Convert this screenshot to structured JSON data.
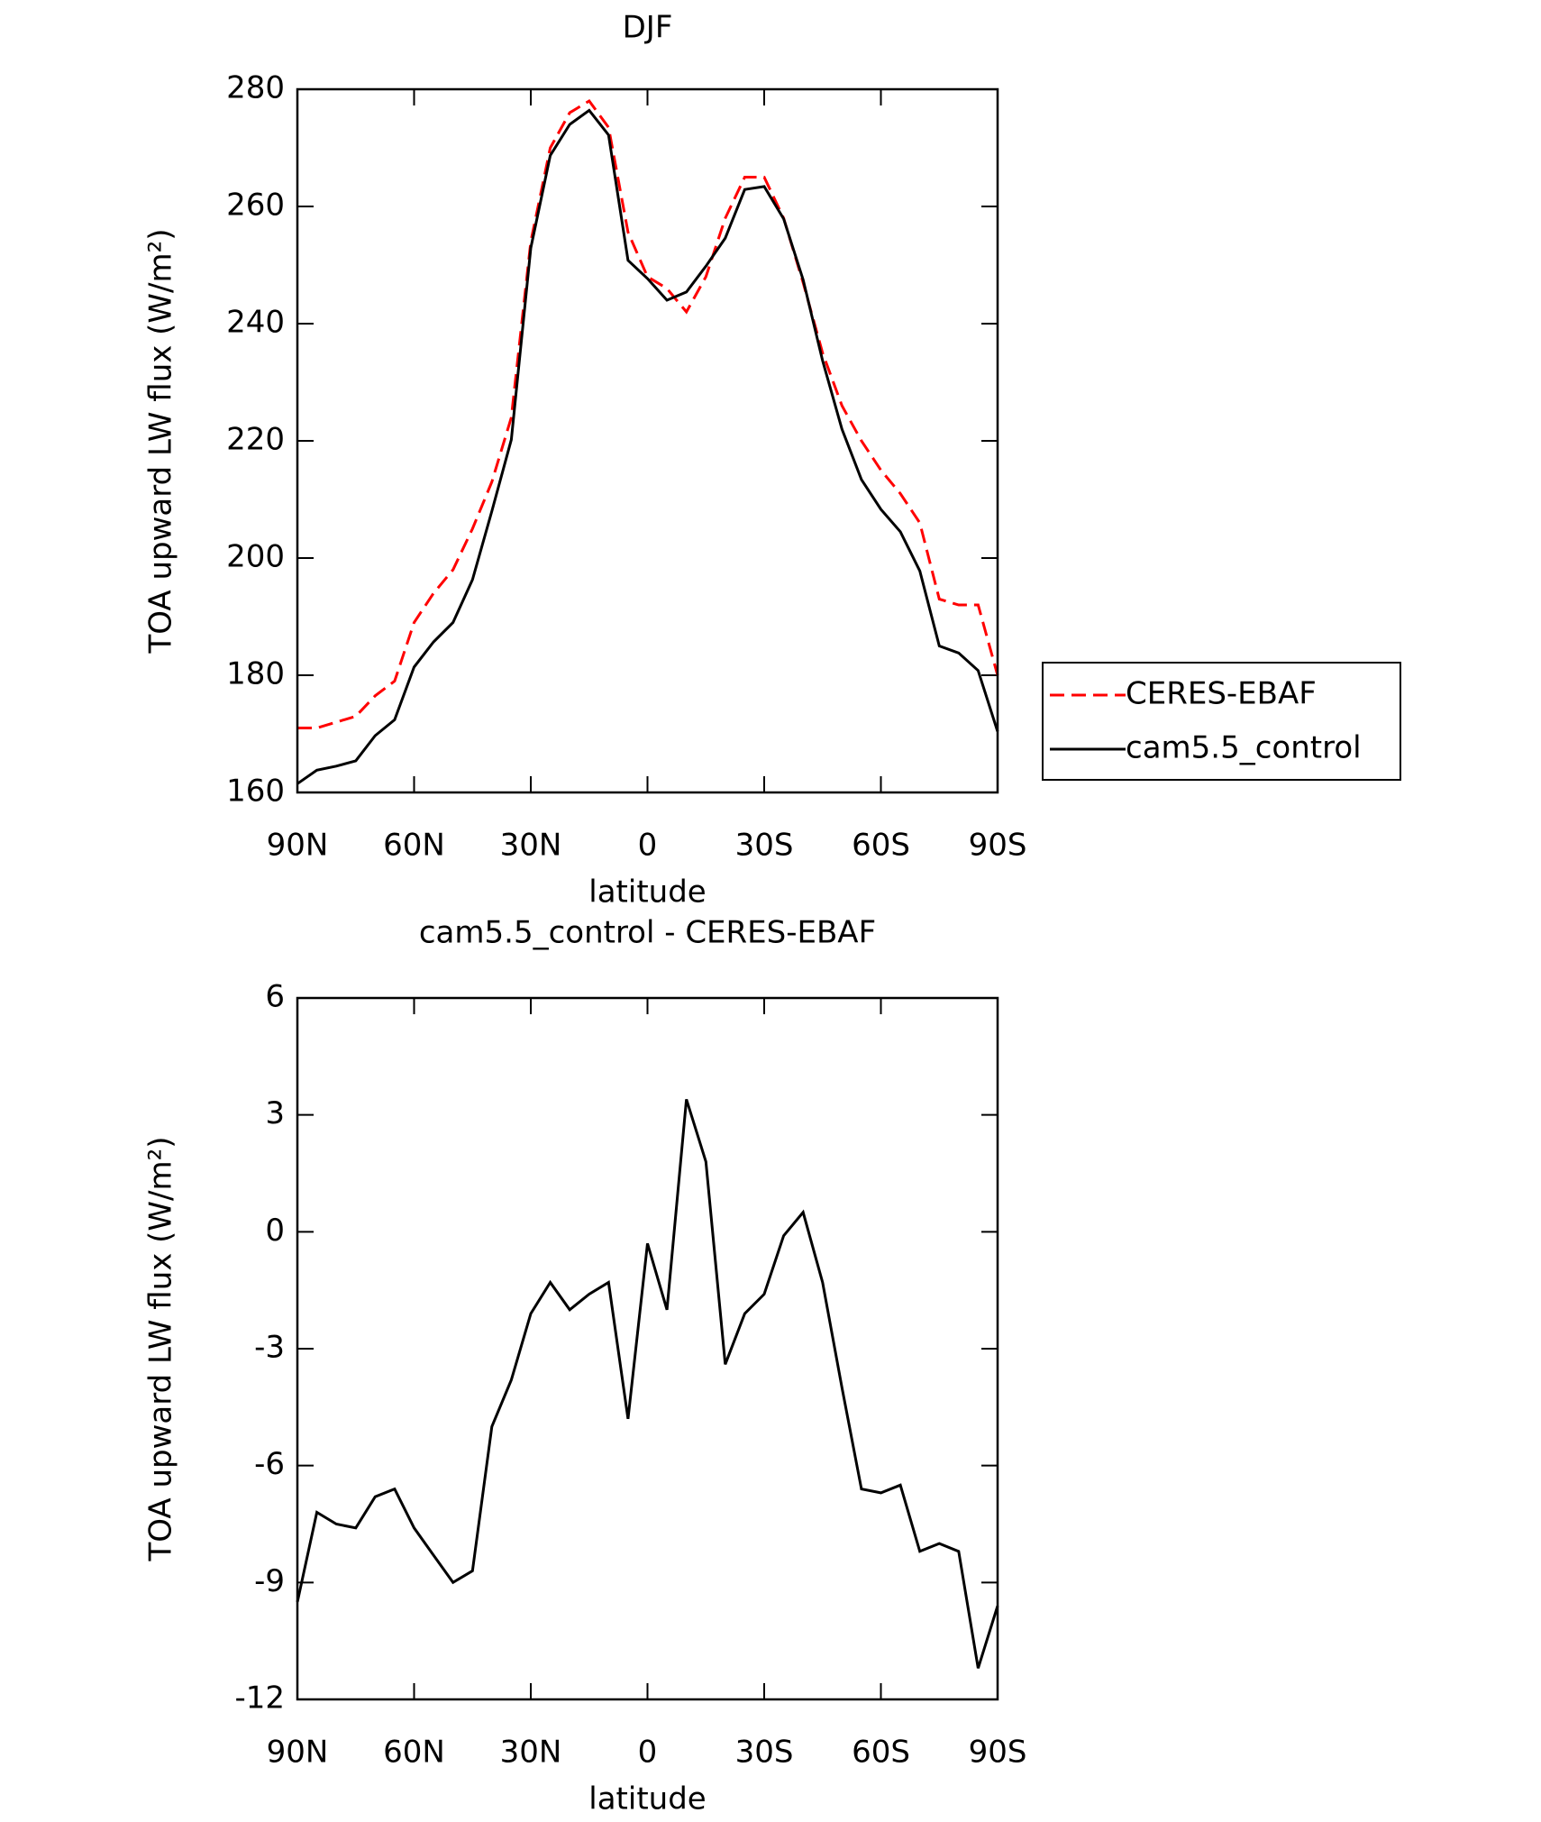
{
  "chart_data": [
    {
      "type": "line",
      "title": "DJF",
      "xlabel": "latitude",
      "ylabel": "TOA upward LW flux (W/m²)",
      "x": [
        90,
        85,
        80,
        75,
        70,
        65,
        60,
        55,
        50,
        45,
        40,
        35,
        30,
        25,
        20,
        15,
        10,
        5,
        0,
        -5,
        -10,
        -15,
        -20,
        -25,
        -30,
        -35,
        -40,
        -45,
        -50,
        -55,
        -60,
        -65,
        -70,
        -75,
        -80,
        -85,
        -90
      ],
      "series": [
        {
          "name": "CERES-EBAF",
          "color": "#ff0000",
          "dashed": true,
          "values": [
            171,
            171,
            172,
            173,
            176.5,
            179,
            189,
            194,
            198,
            205,
            213,
            224,
            254,
            270,
            276,
            278,
            273.5,
            255.6,
            248,
            246,
            242,
            248,
            258,
            265,
            265,
            258,
            247,
            235,
            226,
            220,
            215,
            211,
            206,
            193,
            192,
            192,
            180
          ]
        },
        {
          "name": "cam5.5_control",
          "color": "#000000",
          "dashed": false,
          "values": [
            161.5,
            163.8,
            164.5,
            165.4,
            169.7,
            172.4,
            181.4,
            185.7,
            189,
            196.3,
            208,
            220.2,
            252.9,
            268.7,
            274,
            276.4,
            272.2,
            250.8,
            247.7,
            244,
            245.4,
            249.8,
            254.6,
            262.9,
            263.4,
            257.9,
            247.5,
            233.7,
            222,
            213.4,
            208.3,
            204.5,
            197.8,
            185,
            183.8,
            180.8,
            170.4
          ]
        }
      ],
      "xlim": [
        90,
        -90
      ],
      "xticks": [
        {
          "value": 90,
          "label": "90N"
        },
        {
          "value": 60,
          "label": "60N"
        },
        {
          "value": 30,
          "label": "30N"
        },
        0,
        {
          "value": -30,
          "label": "30S"
        },
        {
          "value": -60,
          "label": "60S"
        },
        {
          "value": -90,
          "label": "90S"
        }
      ],
      "ylim": [
        160,
        280
      ],
      "yticks": [
        160,
        180,
        200,
        220,
        240,
        260,
        280
      ],
      "legend": "right"
    },
    {
      "type": "line",
      "title": "cam5.5_control - CERES-EBAF",
      "xlabel": "latitude",
      "ylabel": "TOA upward LW flux (W/m²)",
      "x": [
        90,
        85,
        80,
        75,
        70,
        65,
        60,
        55,
        50,
        45,
        40,
        35,
        30,
        25,
        20,
        15,
        10,
        5,
        0,
        -5,
        -10,
        -15,
        -20,
        -25,
        -30,
        -35,
        -40,
        -45,
        -50,
        -55,
        -60,
        -65,
        -70,
        -75,
        -80,
        -85,
        -90
      ],
      "series": [
        {
          "color": "#000000",
          "dashed": false,
          "values": [
            -9.5,
            -7.2,
            -7.5,
            -7.6,
            -6.8,
            -6.6,
            -7.6,
            -8.3,
            -9.0,
            -8.7,
            -5.0,
            -3.8,
            -2.1,
            -1.3,
            -2.0,
            -1.6,
            -1.3,
            -4.8,
            -0.3,
            -2.0,
            3.4,
            1.8,
            -3.4,
            -2.1,
            -1.6,
            -0.1,
            0.5,
            -1.3,
            -4.0,
            -6.6,
            -6.7,
            -6.5,
            -8.2,
            -8.0,
            -8.2,
            -11.2,
            -9.6
          ]
        }
      ],
      "xlim": [
        90,
        -90
      ],
      "xticks": [
        {
          "value": 90,
          "label": "90N"
        },
        {
          "value": 60,
          "label": "60N"
        },
        {
          "value": 30,
          "label": "30N"
        },
        0,
        {
          "value": -30,
          "label": "30S"
        },
        {
          "value": -60,
          "label": "60S"
        },
        {
          "value": -90,
          "label": "90S"
        }
      ],
      "ylim": [
        -12,
        6
      ],
      "yticks": [
        -12,
        -9,
        -6,
        -3,
        0,
        3,
        6
      ]
    }
  ]
}
